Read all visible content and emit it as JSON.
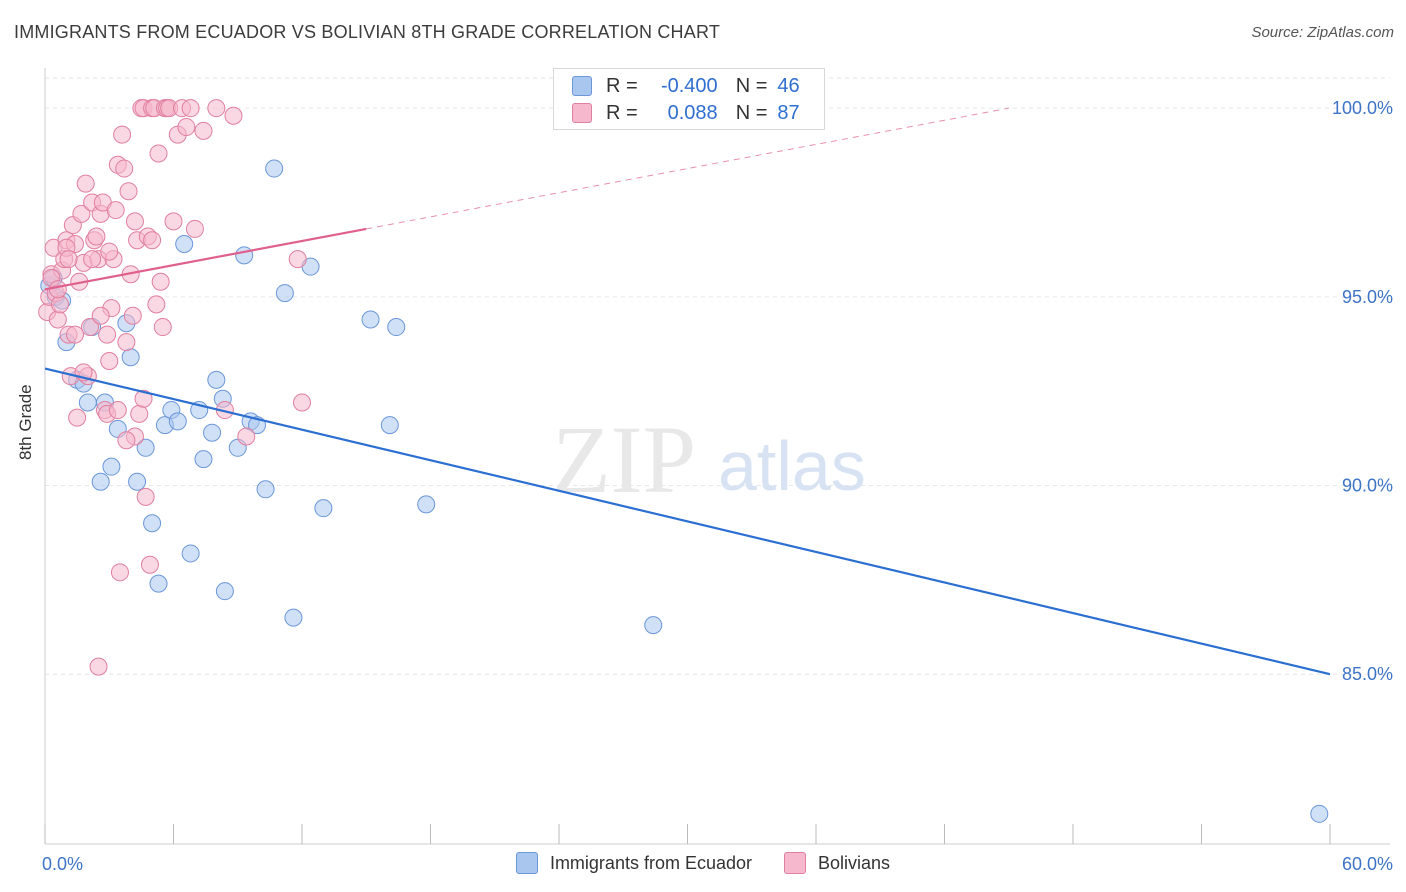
{
  "header": {
    "title": "IMMIGRANTS FROM ECUADOR VS BOLIVIAN 8TH GRADE CORRELATION CHART",
    "source": "Source: ZipAtlas.com"
  },
  "legend": {
    "rows": [
      {
        "r_label": "R =",
        "r_value": "-0.400",
        "n_label": "N =",
        "n_value": "46",
        "color": "#a9c6ef",
        "border": "#6b97d9"
      },
      {
        "r_label": "R =",
        "r_value": "0.088",
        "n_label": "N =",
        "n_value": "87",
        "color": "#f6b8cc",
        "border": "#e07f9f"
      }
    ]
  },
  "watermark": {
    "zip": "ZIP",
    "atlas": "atlas"
  },
  "chart_data": {
    "type": "scatter",
    "xlabel": "",
    "ylabel": "8th Grade",
    "xlim": [
      0,
      60
    ],
    "ylim": [
      80.5,
      100.8
    ],
    "x_tick_labels": [
      {
        "value": 0,
        "label": "0.0%"
      },
      {
        "value": 60,
        "label": "60.0%"
      }
    ],
    "y_tick_labels": [
      {
        "value": 100,
        "label": "100.0%"
      },
      {
        "value": 95,
        "label": "95.0%"
      },
      {
        "value": 90,
        "label": "90.0%"
      },
      {
        "value": 85,
        "label": "85.0%"
      }
    ],
    "x_minor_ticks": [
      6,
      12,
      18,
      24,
      30,
      36,
      42,
      48,
      54
    ],
    "grid": true,
    "legend_position": "bottom-center",
    "series": [
      {
        "name": "Immigrants from Ecuador",
        "color": "#a9c6ef",
        "stroke": "#6b97d9",
        "line_color": "#2b6fd1",
        "trend": {
          "x": [
            0,
            60
          ],
          "y": [
            93.1,
            85.0
          ],
          "dashed_to": null
        },
        "points": [
          [
            0.2,
            95.3
          ],
          [
            0.5,
            95.0
          ],
          [
            0.8,
            94.9
          ],
          [
            1.0,
            93.8
          ],
          [
            1.5,
            92.8
          ],
          [
            1.8,
            92.7
          ],
          [
            2.0,
            92.2
          ],
          [
            2.2,
            94.2
          ],
          [
            2.8,
            92.2
          ],
          [
            3.1,
            90.5
          ],
          [
            3.4,
            91.5
          ],
          [
            2.6,
            90.1
          ],
          [
            3.8,
            94.3
          ],
          [
            4.0,
            93.4
          ],
          [
            4.3,
            90.1
          ],
          [
            4.7,
            91.0
          ],
          [
            5.0,
            89.0
          ],
          [
            5.3,
            87.4
          ],
          [
            5.6,
            91.6
          ],
          [
            5.9,
            92.0
          ],
          [
            6.2,
            91.7
          ],
          [
            6.5,
            96.4
          ],
          [
            6.8,
            88.2
          ],
          [
            7.2,
            92.0
          ],
          [
            7.4,
            90.7
          ],
          [
            7.8,
            91.4
          ],
          [
            8.0,
            92.8
          ],
          [
            8.3,
            92.3
          ],
          [
            8.4,
            87.2
          ],
          [
            9.0,
            91.0
          ],
          [
            9.3,
            96.1
          ],
          [
            9.6,
            91.7
          ],
          [
            9.9,
            91.6
          ],
          [
            10.3,
            89.9
          ],
          [
            10.7,
            98.4
          ],
          [
            11.2,
            95.1
          ],
          [
            11.6,
            86.5
          ],
          [
            12.4,
            95.8
          ],
          [
            13.0,
            89.4
          ],
          [
            15.2,
            94.4
          ],
          [
            16.1,
            91.6
          ],
          [
            16.4,
            94.2
          ],
          [
            17.8,
            89.5
          ],
          [
            28.4,
            86.3
          ],
          [
            59.5,
            81.3
          ],
          [
            0.4,
            95.5
          ]
        ]
      },
      {
        "name": "Bolivians",
        "color": "#f6b8cc",
        "stroke": "#e07f9f",
        "line_color": "#e0608d",
        "trend": {
          "x": [
            0,
            15
          ],
          "y": [
            95.2,
            96.8
          ],
          "dashed_to": {
            "x": 45,
            "y": 100.0
          }
        },
        "points": [
          [
            0.1,
            94.6
          ],
          [
            0.2,
            95.0
          ],
          [
            0.3,
            95.6
          ],
          [
            0.4,
            96.3
          ],
          [
            0.5,
            95.1
          ],
          [
            0.6,
            94.4
          ],
          [
            0.7,
            94.8
          ],
          [
            0.8,
            95.7
          ],
          [
            0.9,
            96.0
          ],
          [
            1.0,
            96.5
          ],
          [
            1.1,
            94.0
          ],
          [
            1.2,
            92.9
          ],
          [
            1.3,
            96.9
          ],
          [
            1.4,
            96.4
          ],
          [
            1.5,
            91.8
          ],
          [
            1.6,
            95.4
          ],
          [
            1.7,
            97.2
          ],
          [
            1.8,
            95.9
          ],
          [
            1.9,
            98.0
          ],
          [
            2.0,
            92.9
          ],
          [
            2.1,
            94.2
          ],
          [
            2.2,
            97.5
          ],
          [
            2.3,
            96.5
          ],
          [
            2.4,
            96.6
          ],
          [
            2.5,
            96.0
          ],
          [
            2.6,
            97.2
          ],
          [
            2.7,
            97.5
          ],
          [
            2.8,
            92.0
          ],
          [
            2.9,
            91.9
          ],
          [
            3.0,
            93.3
          ],
          [
            3.1,
            94.7
          ],
          [
            3.2,
            96.0
          ],
          [
            3.3,
            97.3
          ],
          [
            3.4,
            98.5
          ],
          [
            3.5,
            87.7
          ],
          [
            3.6,
            99.3
          ],
          [
            3.7,
            98.4
          ],
          [
            3.8,
            93.8
          ],
          [
            3.9,
            97.8
          ],
          [
            4.0,
            95.6
          ],
          [
            4.1,
            94.5
          ],
          [
            4.2,
            91.3
          ],
          [
            4.3,
            96.5
          ],
          [
            4.4,
            91.9
          ],
          [
            4.5,
            100.0
          ],
          [
            4.6,
            100.0
          ],
          [
            4.7,
            89.7
          ],
          [
            4.8,
            96.6
          ],
          [
            4.9,
            87.9
          ],
          [
            5.0,
            100.0
          ],
          [
            5.1,
            100.0
          ],
          [
            5.2,
            94.8
          ],
          [
            5.3,
            98.8
          ],
          [
            5.4,
            95.4
          ],
          [
            5.5,
            94.2
          ],
          [
            5.6,
            100.0
          ],
          [
            5.7,
            100.0
          ],
          [
            5.8,
            100.0
          ],
          [
            6.0,
            97.0
          ],
          [
            6.2,
            99.3
          ],
          [
            6.4,
            100.0
          ],
          [
            6.6,
            99.5
          ],
          [
            6.8,
            100.0
          ],
          [
            7.0,
            96.8
          ],
          [
            7.4,
            99.4
          ],
          [
            8.0,
            100.0
          ],
          [
            8.4,
            92.0
          ],
          [
            8.8,
            99.8
          ],
          [
            9.4,
            91.3
          ],
          [
            11.8,
            96.0
          ],
          [
            12.0,
            92.2
          ],
          [
            2.5,
            85.2
          ],
          [
            0.3,
            95.5
          ],
          [
            0.6,
            95.2
          ],
          [
            1.0,
            96.3
          ],
          [
            1.4,
            94.0
          ],
          [
            1.8,
            93.0
          ],
          [
            2.2,
            96.0
          ],
          [
            2.6,
            94.5
          ],
          [
            3.0,
            96.2
          ],
          [
            3.4,
            92.0
          ],
          [
            3.8,
            91.2
          ],
          [
            4.2,
            97.0
          ],
          [
            4.6,
            92.3
          ],
          [
            5.0,
            96.5
          ],
          [
            1.1,
            96.0
          ],
          [
            2.9,
            94.0
          ]
        ]
      }
    ]
  },
  "bottom_legend": [
    "Immigrants from Ecuador",
    "Bolivians"
  ]
}
